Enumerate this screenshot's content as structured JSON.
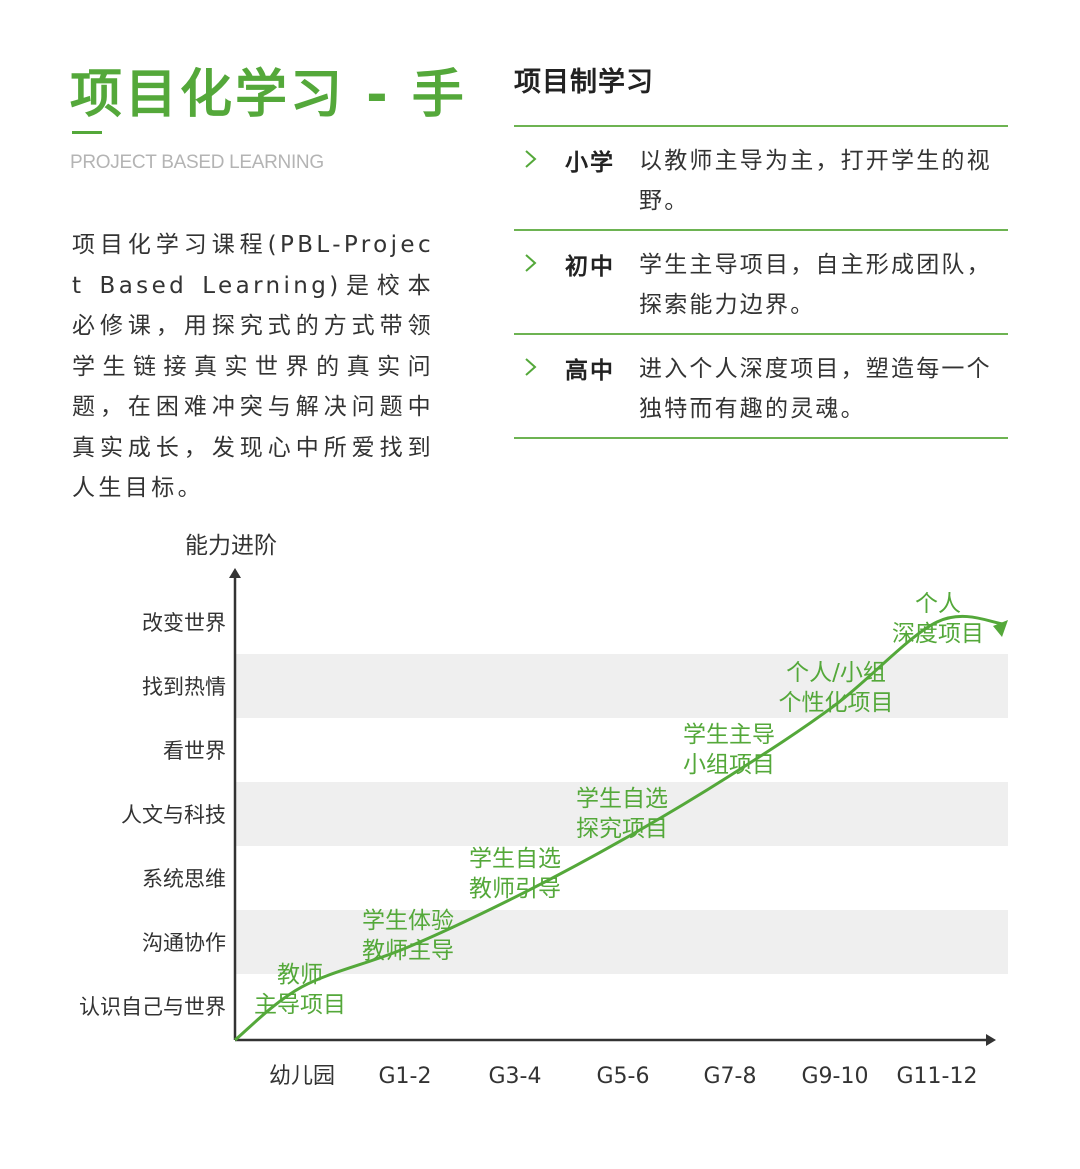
{
  "header": {
    "title": "项目化学习 - 手",
    "subtitle": "PROJECT BASED LEARNING"
  },
  "intro": {
    "text": "项目化学习课程(PBL-Project Based Learning)是校本必修课，用探究式的方式带领学生链接真实世界的真实问题，在困难冲突与解决问题中真实成长，发现心中所爱找到人生目标。"
  },
  "system": {
    "title": "项目制学习",
    "stages": [
      {
        "level": "小学",
        "desc": "以教师主导为主，打开学生的视野。"
      },
      {
        "level": "初中",
        "desc": "学生主导项目，自主形成团队，探索能力边界。"
      },
      {
        "level": "高中",
        "desc": "进入个人深度项目，塑造每一个独特而有趣的灵魂。"
      }
    ]
  },
  "colors": {
    "accent": "#54a83a",
    "band": "#efefef",
    "axis": "#333333",
    "muted": "#b4b4b4"
  },
  "icons": {
    "stage_bullet": "chevron-right-icon"
  },
  "chart_data": {
    "type": "line",
    "ylabel": "能力进阶",
    "xlabel": "",
    "categories": [
      "幼儿园",
      "G1-2",
      "G3-4",
      "G5-6",
      "G7-8",
      "G9-10",
      "G11-12"
    ],
    "y_levels": [
      "认识自己与世界",
      "沟通协作",
      "系统思维",
      "人文与科技",
      "看世界",
      "找到热情",
      "改变世界"
    ],
    "banded_levels": [
      "沟通协作",
      "人文与科技",
      "找到热情"
    ],
    "series": [
      {
        "values": [
          0.3,
          0.9,
          1.7,
          2.6,
          3.6,
          4.7,
          6.0
        ],
        "curve": "rising",
        "arrow_end": true
      }
    ],
    "annotations": [
      {
        "category": "幼儿园",
        "lines": [
          "教师",
          "主导项目"
        ]
      },
      {
        "category": "G1-2",
        "lines": [
          "学生体验",
          "教师主导"
        ]
      },
      {
        "category": "G3-4",
        "lines": [
          "学生自选",
          "教师引导"
        ]
      },
      {
        "category": "G5-6",
        "lines": [
          "学生自选",
          "探究项目"
        ]
      },
      {
        "category": "G7-8",
        "lines": [
          "学生主导",
          "小组项目"
        ]
      },
      {
        "category": "G9-10",
        "lines": [
          "个人/小组",
          "个性化项目"
        ]
      },
      {
        "category": "G11-12",
        "lines": [
          "个人",
          "深度项目"
        ]
      }
    ]
  }
}
